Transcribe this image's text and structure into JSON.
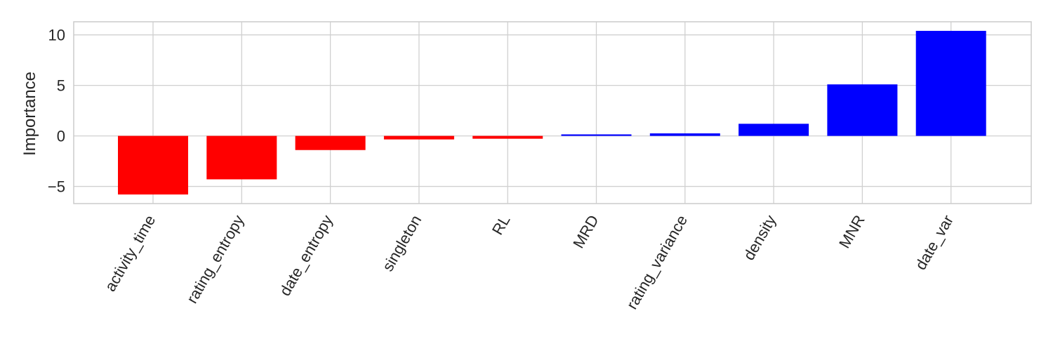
{
  "chart_data": {
    "type": "bar",
    "title": "",
    "xlabel": "",
    "ylabel": "Importance",
    "categories": [
      "activity_time",
      "rating_entropy",
      "date_entropy",
      "singleton",
      "RL",
      "MRD",
      "rating_variance",
      "density",
      "MNR",
      "date_var"
    ],
    "values": [
      -5.8,
      -4.3,
      -1.4,
      -0.35,
      -0.28,
      0.15,
      0.25,
      1.2,
      5.1,
      10.4
    ],
    "ylim": [
      -6.7,
      11.3
    ],
    "yticks": [
      -5,
      0,
      5,
      10
    ],
    "ytick_labels": [
      "−5",
      "0",
      "5",
      "10"
    ],
    "grid": true,
    "colors": {
      "negative": "#ff0000",
      "positive": "#0000ff"
    }
  }
}
